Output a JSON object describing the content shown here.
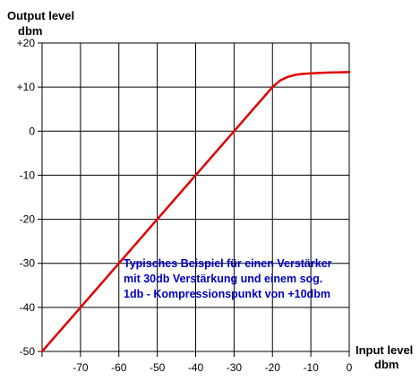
{
  "chart_data": {
    "type": "line",
    "title": "",
    "ylabel_line1": "Output level",
    "ylabel_line2": "dbm",
    "xlabel_line1": "Input level",
    "xlabel_line2": "dbm",
    "xlim": [
      -80,
      0
    ],
    "ylim": [
      -50,
      20
    ],
    "grid": true,
    "x_ticks": [
      -70,
      -60,
      -50,
      -40,
      -30,
      -20,
      -10,
      0
    ],
    "x_tick_labels": [
      "-70",
      "-60",
      "-50",
      "-40",
      "-30",
      "-20",
      "-10",
      "0"
    ],
    "y_ticks": [
      20,
      10,
      0,
      -10,
      -20,
      -30,
      -40,
      -50
    ],
    "y_tick_labels": [
      "+20",
      "+10",
      "0",
      "-10",
      "-20",
      "-30",
      "-40",
      "-50"
    ],
    "annotation": [
      "Typisches Beispiel für einen Verstärker",
      "mit 30db Verstärkung und einem sog.",
      "1db - Kompressionspunkt von +10dbm"
    ],
    "series": [
      {
        "color": "#e00000",
        "x": [
          -80,
          -70,
          -60,
          -50,
          -40,
          -30,
          -25,
          -22,
          -20,
          -18,
          -16,
          -14,
          -12,
          -10,
          -8,
          -5,
          0
        ],
        "y": [
          -50,
          -40,
          -30,
          -20,
          -10,
          0,
          5,
          8,
          10,
          11.5,
          12.3,
          12.8,
          13.0,
          13.1,
          13.2,
          13.3,
          13.4
        ]
      }
    ],
    "colors": {
      "axis": "#000000",
      "grid": "#000000",
      "annotation": "#0000c0",
      "line": "#e00000"
    }
  }
}
